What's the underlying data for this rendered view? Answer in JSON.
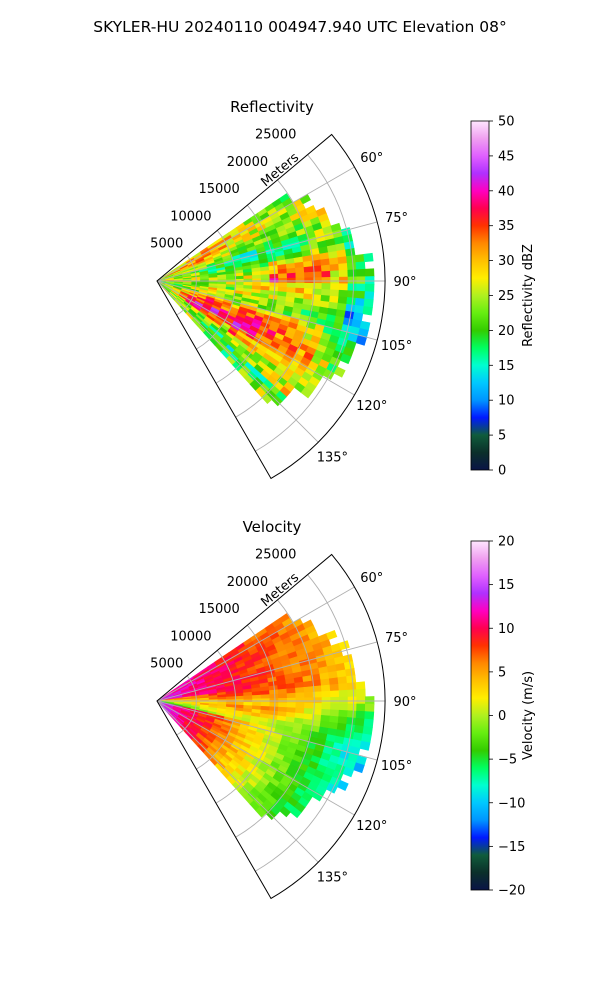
{
  "figure": {
    "suptitle": "SKYLER-HU  20240110  004947.940 UTC Elevation 08°"
  },
  "chart_data": [
    {
      "type": "heatmap",
      "subtype": "polar-sector",
      "title": "Reflectivity",
      "radial_axis_label": "Meters",
      "radial_ticks": [
        5000,
        10000,
        15000,
        20000,
        25000
      ],
      "radial_tick_labels": [
        "5000",
        "10000",
        "15000",
        "20000",
        "25000"
      ],
      "rmax": 29000,
      "angle_range_deg": [
        50,
        150
      ],
      "angle_ticks": [
        60,
        75,
        90,
        105,
        120,
        135
      ],
      "angle_tick_labels": [
        "60°",
        "75°",
        "90°",
        "105°",
        "120°",
        "135°"
      ],
      "grid": true,
      "colorbar": {
        "label": "Reflectivity dBZ",
        "range": [
          0,
          50
        ],
        "ticks": [
          0,
          5,
          10,
          15,
          20,
          25,
          30,
          35,
          40,
          45,
          50
        ],
        "tick_labels": [
          "0",
          "5",
          "10",
          "15",
          "20",
          "25",
          "30",
          "35",
          "40",
          "45",
          "50"
        ],
        "stops": [
          "#0a1446",
          "#0b2f2a",
          "#0f5c3c",
          "#0019ff",
          "#0095ff",
          "#00c8ff",
          "#00ffd0",
          "#00ff60",
          "#33cc00",
          "#66ee11",
          "#b0f020",
          "#ffee00",
          "#ffc000",
          "#ff8800",
          "#ff3300",
          "#ff0050",
          "#ff00c0",
          "#b030ff",
          "#e060ff",
          "#f0a0f0",
          "#ffe6ff"
        ]
      }
    },
    {
      "type": "heatmap",
      "subtype": "polar-sector",
      "title": "Velocity",
      "radial_axis_label": "Meters",
      "radial_ticks": [
        5000,
        10000,
        15000,
        20000,
        25000
      ],
      "radial_tick_labels": [
        "5000",
        "10000",
        "15000",
        "20000",
        "25000"
      ],
      "rmax": 29000,
      "angle_range_deg": [
        50,
        150
      ],
      "angle_ticks": [
        60,
        75,
        90,
        105,
        120,
        135
      ],
      "angle_tick_labels": [
        "60°",
        "75°",
        "90°",
        "105°",
        "120°",
        "135°"
      ],
      "grid": true,
      "colorbar": {
        "label": "Velocity (m/s)",
        "range": [
          -20,
          20
        ],
        "ticks": [
          -20,
          -15,
          -10,
          -5,
          0,
          5,
          10,
          15,
          20
        ],
        "tick_labels": [
          "−20",
          "−15",
          "−10",
          "−5",
          "0",
          "5",
          "10",
          "15",
          "20"
        ],
        "stops": [
          "#0a1446",
          "#0b2f2a",
          "#0f5c3c",
          "#0019ff",
          "#0095ff",
          "#00c8ff",
          "#00ffd0",
          "#00ff60",
          "#33cc00",
          "#66ee11",
          "#b0f020",
          "#ffee00",
          "#ffc000",
          "#ff8800",
          "#ff3300",
          "#ff0050",
          "#ff00c0",
          "#b030ff",
          "#e060ff",
          "#f0a0f0",
          "#ffe6ff"
        ]
      }
    }
  ]
}
